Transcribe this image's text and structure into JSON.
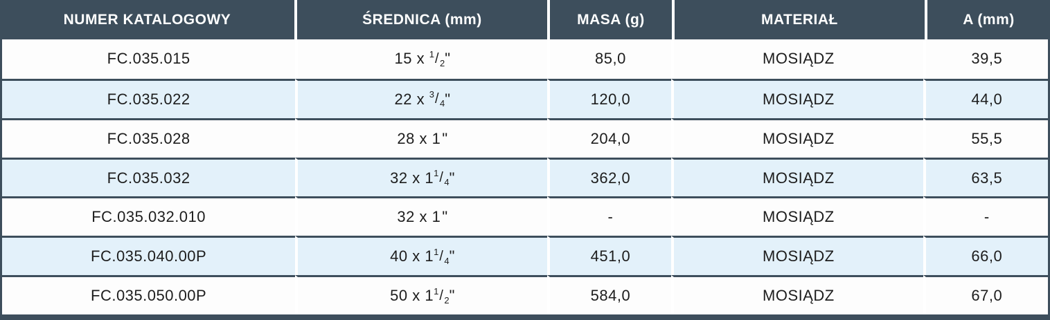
{
  "colors": {
    "header_bg": "#3d4e5c",
    "row_stripe_bg": "#e3f1fa",
    "border": "#3d4e5c",
    "header_text": "#ffffff",
    "body_text": "#1d1d1d"
  },
  "table": {
    "headers": [
      {
        "label": "NUMER KATALOGOWY"
      },
      {
        "label": "ŚREDNICA (mm)"
      },
      {
        "label": "MASA (g)"
      },
      {
        "label": "MATERIAŁ"
      },
      {
        "label": "A (mm)"
      }
    ],
    "rows": [
      {
        "catalog": "FC.035.015",
        "diameter": {
          "pre": "15 x ",
          "sup": "1",
          "slash": "/",
          "sub": "2",
          "post": "\""
        },
        "mass": "85,0",
        "material": "MOSIĄDZ",
        "a": "39,5"
      },
      {
        "catalog": "FC.035.022",
        "diameter": {
          "pre": "22 x ",
          "sup": "3",
          "slash": "/",
          "sub": "4",
          "post": "\""
        },
        "mass": "120,0",
        "material": "MOSIĄDZ",
        "a": "44,0"
      },
      {
        "catalog": "FC.035.028",
        "diameter": {
          "pre": "28 x 1",
          "sup": "",
          "slash": "",
          "sub": "",
          "post": "\""
        },
        "mass": "204,0",
        "material": "MOSIĄDZ",
        "a": "55,5"
      },
      {
        "catalog": "FC.035.032",
        "diameter": {
          "pre": "32 x 1",
          "sup": "1",
          "slash": "/",
          "sub": "4",
          "post": "\""
        },
        "mass": "362,0",
        "material": "MOSIĄDZ",
        "a": "63,5"
      },
      {
        "catalog": "FC.035.032.010",
        "diameter": {
          "pre": "32 x 1",
          "sup": "",
          "slash": "",
          "sub": "",
          "post": "\""
        },
        "mass": "-",
        "material": "MOSIĄDZ",
        "a": "-"
      },
      {
        "catalog": "FC.035.040.00P",
        "diameter": {
          "pre": "40 x 1",
          "sup": "1",
          "slash": "/",
          "sub": "4",
          "post": "\""
        },
        "mass": "451,0",
        "material": "MOSIĄDZ",
        "a": "66,0"
      },
      {
        "catalog": "FC.035.050.00P",
        "diameter": {
          "pre": "50 x 1",
          "sup": "1",
          "slash": "/",
          "sub": "2",
          "post": "\""
        },
        "mass": "584,0",
        "material": "MOSIĄDZ",
        "a": "67,0"
      }
    ]
  },
  "chart_data": {
    "type": "table",
    "columns": [
      "NUMER KATALOGOWY",
      "ŚREDNICA (mm)",
      "MASA (g)",
      "MATERIAŁ",
      "A (mm)"
    ],
    "rows": [
      [
        "FC.035.015",
        "15 x 1/2\"",
        "85,0",
        "MOSIĄDZ",
        "39,5"
      ],
      [
        "FC.035.022",
        "22 x 3/4\"",
        "120,0",
        "MOSIĄDZ",
        "44,0"
      ],
      [
        "FC.035.028",
        "28 x 1\"",
        "204,0",
        "MOSIĄDZ",
        "55,5"
      ],
      [
        "FC.035.032",
        "32 x 1 1/4\"",
        "362,0",
        "MOSIĄDZ",
        "63,5"
      ],
      [
        "FC.035.032.010",
        "32 x 1\"",
        "-",
        "MOSIĄDZ",
        "-"
      ],
      [
        "FC.035.040.00P",
        "40 x 1 1/4\"",
        "451,0",
        "MOSIĄDZ",
        "66,0"
      ],
      [
        "FC.035.050.00P",
        "50 x 1 1/2\"",
        "584,0",
        "MOSIĄDZ",
        "67,0"
      ]
    ]
  }
}
